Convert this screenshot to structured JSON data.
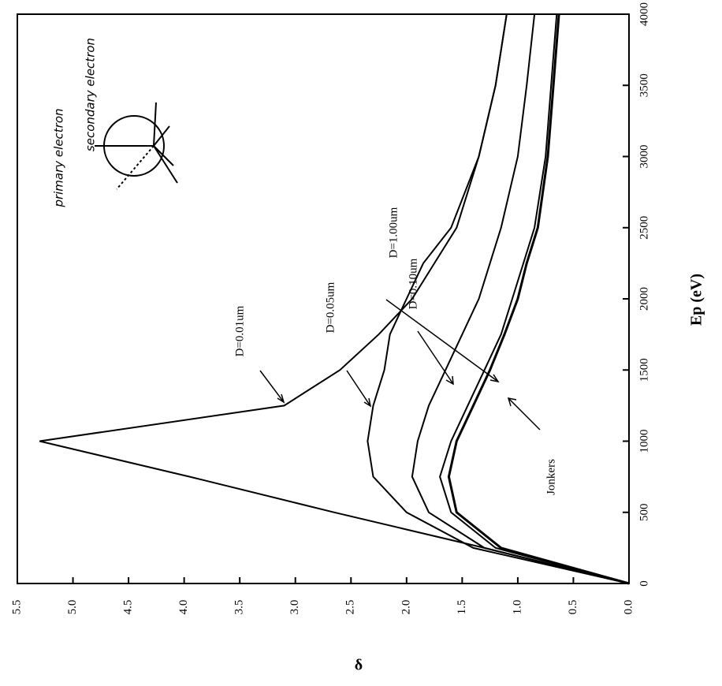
{
  "chart_data": {
    "type": "line",
    "x_label": "Ep (eV)",
    "y_label": "δ",
    "x": [
      0,
      250,
      500,
      750,
      1000,
      1250,
      1500,
      1750,
      2000,
      2250,
      2500,
      3000,
      3500,
      4000
    ],
    "series": [
      {
        "name": "D=0.01um",
        "color": "#000000",
        "values": [
          0,
          1.3,
          2.65,
          3.95,
          5.3,
          3.1,
          2.6,
          2.25,
          1.95,
          1.75,
          1.55,
          1.35,
          1.2,
          1.1
        ]
      },
      {
        "name": "D=0.05um",
        "color": "#000000",
        "values": [
          0,
          1.4,
          2.0,
          2.3,
          2.35,
          2.3,
          2.2,
          2.15,
          2.0,
          1.85,
          1.6,
          1.35,
          1.2,
          1.1
        ]
      },
      {
        "name": "D=0.10um",
        "color": "#000000",
        "values": [
          0,
          1.3,
          1.8,
          1.95,
          1.9,
          1.8,
          1.65,
          1.5,
          1.35,
          1.25,
          1.15,
          1.0,
          0.92,
          0.85
        ]
      },
      {
        "name": "D=1.00um",
        "color": "#000000",
        "values": [
          0,
          1.2,
          1.6,
          1.7,
          1.6,
          1.45,
          1.3,
          1.15,
          1.05,
          0.95,
          0.85,
          0.75,
          0.7,
          0.65
        ]
      },
      {
        "name": "Jonkers",
        "color": "#000000",
        "values": [
          0,
          1.15,
          1.55,
          1.62,
          1.55,
          1.4,
          1.25,
          1.12,
          1.0,
          0.92,
          0.82,
          0.73,
          0.68,
          0.63
        ]
      }
    ],
    "xlim": [
      0,
      4000
    ],
    "xticks": [
      0,
      500,
      1000,
      1500,
      2000,
      2500,
      3000,
      3500,
      4000
    ],
    "ylim": [
      0,
      5.5
    ],
    "yticks": [
      {
        "value": 0,
        "label": "0.0"
      },
      0.5,
      {
        "value": 1,
        "label": "1.0"
      },
      1.5,
      {
        "value": 2,
        "label": "2.0"
      },
      2.5,
      {
        "value": 3,
        "label": "3.0"
      },
      3.5,
      {
        "value": 4,
        "label": "4.0"
      },
      4.5,
      {
        "value": 5,
        "label": "5.0"
      },
      5.5
    ],
    "rotated": true,
    "annotations": [
      "primary electron",
      "secondary electron"
    ]
  }
}
